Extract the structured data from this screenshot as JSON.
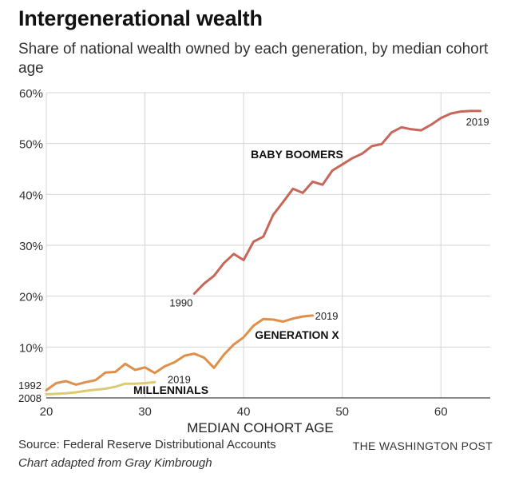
{
  "header": {
    "title": "Intergenerational wealth",
    "subtitle": "Share of national wealth owned by each generation, by median cohort age"
  },
  "footer": {
    "source": "Source: Federal Reserve Distributional Accounts",
    "credit": "Chart adapted from Gray Kimbrough",
    "publisher": "THE WASHINGTON POST"
  },
  "chart_data": {
    "type": "line",
    "title": "Intergenerational wealth",
    "subtitle": "Share of national wealth owned by each generation, by median cohort age",
    "xlabel": "MEDIAN COHORT AGE",
    "ylabel": "",
    "xlim": [
      20,
      65
    ],
    "ylim": [
      0,
      60
    ],
    "xticks": [
      20,
      30,
      40,
      50,
      60
    ],
    "yticks": [
      10,
      20,
      30,
      40,
      50,
      60
    ],
    "ytick_labels": [
      "10%",
      "20%",
      "30%",
      "40%",
      "50%",
      "60%"
    ],
    "grid": true,
    "series": [
      {
        "name": "BABY BOOMERS",
        "color": "#c7675a",
        "start_label": "1990",
        "end_label": "2019",
        "x": [
          35,
          36,
          37,
          38,
          39,
          40,
          41,
          42,
          43,
          44,
          45,
          46,
          47,
          48,
          49,
          50,
          51,
          52,
          53,
          54,
          55,
          56,
          57,
          58,
          59,
          60,
          61,
          62,
          63,
          64
        ],
        "y": [
          20.5,
          22.5,
          24,
          26.5,
          28.3,
          27.1,
          30.7,
          31.7,
          36,
          38.5,
          41.1,
          40.3,
          42.5,
          41.9,
          44.7,
          45.9,
          47.1,
          48,
          49.5,
          49.9,
          52.2,
          53.2,
          52.8,
          52.6,
          53.7,
          55,
          55.9,
          56.3,
          56.4,
          56.4
        ]
      },
      {
        "name": "GENERATION X",
        "color": "#e08f4a",
        "start_label": "1992",
        "end_label": "2019",
        "x": [
          20,
          21,
          22,
          23,
          24,
          25,
          26,
          27,
          28,
          29,
          30,
          31,
          32,
          33,
          34,
          35,
          36,
          37,
          38,
          39,
          40,
          41,
          42,
          43,
          44,
          45,
          46,
          47
        ],
        "y": [
          1.5,
          2.9,
          3.3,
          2.6,
          3.1,
          3.5,
          5,
          5.1,
          6.7,
          5.5,
          6,
          4.9,
          6.2,
          7,
          8.3,
          8.7,
          7.9,
          5.9,
          8.5,
          10.5,
          11.9,
          14.2,
          15.5,
          15.4,
          15,
          15.6,
          16,
          16.2
        ]
      },
      {
        "name": "MILLENNIALS",
        "color": "#dccb72",
        "start_label": "2008",
        "end_label": "2019",
        "x": [
          20,
          21,
          22,
          23,
          24,
          25,
          26,
          27,
          28,
          29,
          30,
          31
        ],
        "y": [
          0.7,
          0.8,
          0.9,
          1.1,
          1.4,
          1.6,
          1.8,
          2.2,
          2.8,
          2.8,
          2.9,
          3.1
        ]
      }
    ]
  }
}
